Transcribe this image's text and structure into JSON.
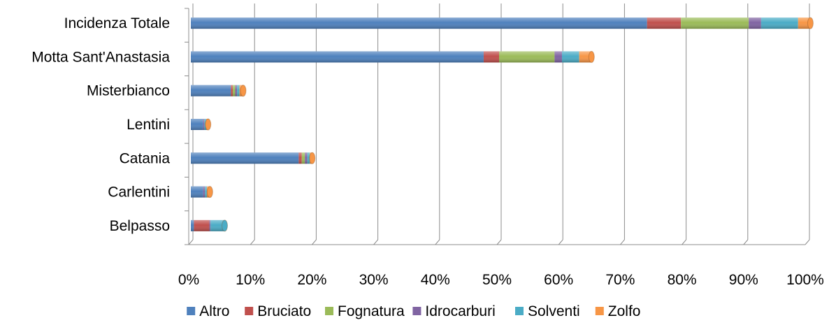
{
  "chart_data": {
    "type": "bar",
    "orientation": "horizontal",
    "stacked": true,
    "three_d": true,
    "title": "",
    "xlabel": "",
    "ylabel": "",
    "xlim": [
      0,
      100
    ],
    "x_ticks": [
      "0%",
      "10%",
      "20%",
      "30%",
      "40%",
      "50%",
      "60%",
      "70%",
      "80%",
      "90%",
      "100%"
    ],
    "grid": true,
    "legend_position": "bottom",
    "categories": [
      "Incidenza Totale",
      "Motta Sant'Anastasia",
      "Misterbianco",
      "Lentini",
      "Catania",
      "Carlentini",
      "Belpasso"
    ],
    "series": [
      {
        "name": "Altro",
        "color": "#4f81bd",
        "values": [
          74,
          47.5,
          6.5,
          2,
          17.5,
          2,
          0.5
        ]
      },
      {
        "name": "Bruciato",
        "color": "#c0504d",
        "values": [
          5.5,
          2.5,
          0.3,
          0,
          0.5,
          0,
          2.5
        ]
      },
      {
        "name": "Fognatura",
        "color": "#9bbb59",
        "values": [
          11,
          9,
          0.4,
          0,
          0.5,
          0,
          0
        ]
      },
      {
        "name": "Idrocarburi",
        "color": "#8064a2",
        "values": [
          2,
          1.2,
          0.3,
          0.2,
          0.4,
          0.3,
          0.2
        ]
      },
      {
        "name": "Solventi",
        "color": "#4bacc6",
        "values": [
          6,
          2.8,
          0.4,
          0.3,
          0.4,
          0.3,
          2.3
        ]
      },
      {
        "name": "Zolfo",
        "color": "#f79646",
        "values": [
          2,
          2,
          0.6,
          0.3,
          0.4,
          0.5,
          0
        ]
      }
    ]
  }
}
